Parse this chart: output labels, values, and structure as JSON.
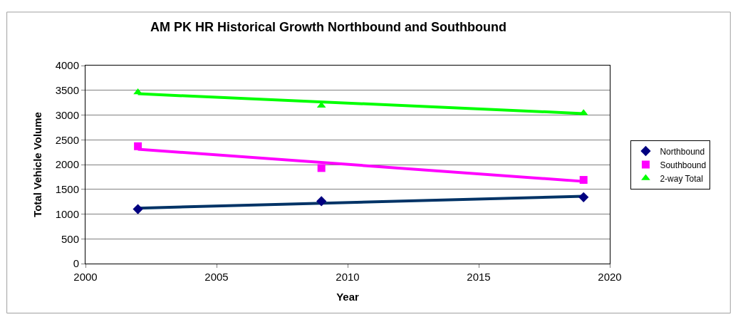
{
  "chart_data": {
    "type": "scatter",
    "title": "AM PK HR Historical Growth Northbound and Southbound",
    "xlabel": "Year",
    "ylabel": "Total Vehicle Volume",
    "xlim": [
      2000,
      2020
    ],
    "xticks": [
      2000,
      2005,
      2010,
      2015,
      2020
    ],
    "ylim": [
      0,
      4000
    ],
    "yticks": [
      0,
      500,
      1000,
      1500,
      2000,
      2500,
      3000,
      3500,
      4000
    ],
    "grid": "y",
    "legend": "right",
    "series": [
      {
        "name": "Northbound",
        "marker": "diamond",
        "color": "#000080",
        "x": [
          2002,
          2009,
          2019
        ],
        "values": [
          1100,
          1260,
          1340
        ]
      },
      {
        "name": "Southbound",
        "marker": "square",
        "color": "#ff00ff",
        "x": [
          2002,
          2009,
          2019
        ],
        "values": [
          2370,
          1930,
          1690
        ]
      },
      {
        "name": "2-way Total",
        "marker": "triangle",
        "color": "#00ff00",
        "x": [
          2002,
          2009,
          2019
        ],
        "values": [
          3460,
          3190,
          3040
        ]
      },
      {
        "type": "line",
        "marker": "none",
        "line_style": "solid",
        "color": "#003366",
        "x": [
          2002,
          2019
        ],
        "values": [
          1120,
          1360
        ]
      },
      {
        "type": "line",
        "marker": "none",
        "line_style": "solid",
        "color": "#ff00ff",
        "x": [
          2002,
          2019
        ],
        "values": [
          2310,
          1660
        ]
      },
      {
        "type": "line",
        "marker": "none",
        "line_style": "solid",
        "color": "#00ff00",
        "x": [
          2002,
          2019
        ],
        "values": [
          3430,
          3030
        ]
      }
    ]
  }
}
